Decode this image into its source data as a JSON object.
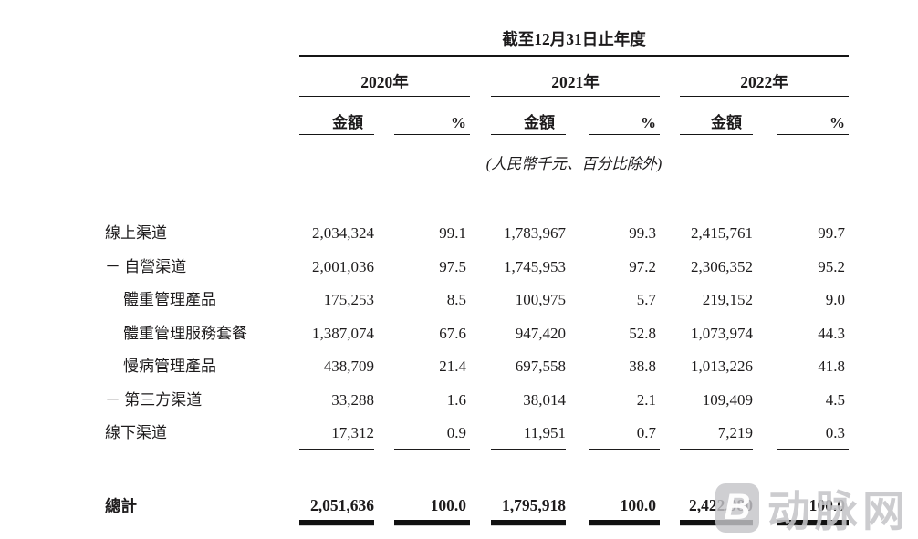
{
  "table": {
    "period_header": "截至12月31日止年度",
    "years": [
      "2020年",
      "2021年",
      "2022年"
    ],
    "col_headers": {
      "amount": "金額",
      "percent": "%"
    },
    "unit_note": "(人民幣千元、百分比除外)",
    "rows": [
      {
        "label": "線上渠道",
        "values": [
          "2,034,324",
          "99.1",
          "1,783,967",
          "99.3",
          "2,415,761",
          "99.7"
        ]
      },
      {
        "label": "－ 自營渠道",
        "values": [
          "2,001,036",
          "97.5",
          "1,745,953",
          "97.2",
          "2,306,352",
          "95.2"
        ]
      },
      {
        "label": "體重管理產品",
        "values": [
          "175,253",
          "8.5",
          "100,975",
          "5.7",
          "219,152",
          "9.0"
        ]
      },
      {
        "label": "體重管理服務套餐",
        "values": [
          "1,387,074",
          "67.6",
          "947,420",
          "52.8",
          "1,073,974",
          "44.3"
        ]
      },
      {
        "label": "慢病管理產品",
        "values": [
          "438,709",
          "21.4",
          "697,558",
          "38.8",
          "1,013,226",
          "41.8"
        ]
      },
      {
        "label": "－ 第三方渠道",
        "values": [
          "33,288",
          "1.6",
          "38,014",
          "2.1",
          "109,409",
          "4.5"
        ]
      },
      {
        "label": "線下渠道",
        "values": [
          "17,312",
          "0.9",
          "11,951",
          "0.7",
          "7,219",
          "0.3"
        ]
      }
    ],
    "total": {
      "label": "總計",
      "values": [
        "2,051,636",
        "100.0",
        "1,795,918",
        "100.0",
        "2,422,980",
        "100.0"
      ]
    }
  },
  "watermark": {
    "logo_letter": "B",
    "text": "动脉网"
  },
  "colors": {
    "text": "#1d1b1c",
    "rule": "#151515",
    "watermark": "#c5c5c8"
  }
}
